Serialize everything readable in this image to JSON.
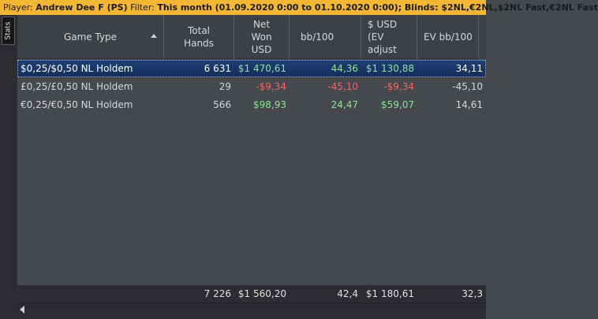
{
  "filter_bar": {
    "player_label": "Player: ",
    "player_value": "Andrew Dee F (PS)",
    "filter_label": "  Filter: ",
    "filter_value": "This month (01.09.2020 0:00 to 01.10.2020 0:00); Blinds: $2NL,€2NL,$2NL Fast,€2NL Fast"
  },
  "side_tab": {
    "label": "Stats"
  },
  "columns": [
    {
      "label": "Game Type"
    },
    {
      "label": "Total\nHands"
    },
    {
      "label": "Net\nWon\nUSD"
    },
    {
      "label": "bb/100"
    },
    {
      "label": "$ USD\n(EV\nadjust"
    },
    {
      "label": "EV bb/100"
    }
  ],
  "rows": [
    {
      "game_type": "$0,25/$0,50 NL Holdem",
      "total_hands": "6 631",
      "net_won": "$1 470,61",
      "bb100": "44,36",
      "ev_usd": "$1 130,88",
      "ev_bb100": "34,11",
      "selected": true
    },
    {
      "game_type": "£0,25/£0,50 NL Holdem",
      "total_hands": "29",
      "net_won": "-$9,34",
      "bb100": "-45,10",
      "ev_usd": "-$9,34",
      "ev_bb100": "-45,10",
      "selected": false
    },
    {
      "game_type": "€0,25/€0,50 NL Holdem",
      "total_hands": "566",
      "net_won": "$98,93",
      "bb100": "24,47",
      "ev_usd": "$59,07",
      "ev_bb100": "14,61",
      "selected": false
    }
  ],
  "totals": {
    "total_hands": "7 226",
    "net_won": "$1 560,20",
    "bb100": "42,4",
    "ev_usd": "$1 180,61",
    "ev_bb100": "32,3"
  },
  "colors": {
    "filter_bar_bg": "#f4b733",
    "selected_row_bg": "#1e3f75",
    "positive": "#8ee39a",
    "negative": "#f06a6a"
  },
  "icons": {
    "sort": "sort-ascending-arrow",
    "scroll_left": "scroll-left-arrow"
  }
}
